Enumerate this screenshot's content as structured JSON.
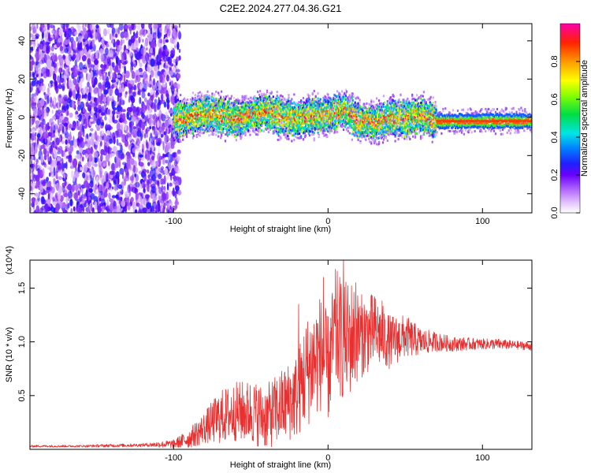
{
  "figure": {
    "title": "C2E2.2024.277.04.36.G21"
  },
  "chart_data": [
    {
      "type": "heatmap",
      "panel": "top",
      "title": "C2E2.2024.277.04.36.G21",
      "xlabel": "Height of straight line (km)",
      "ylabel": "Frequency (Hz)",
      "xlim": [
        -193,
        132
      ],
      "ylim": [
        -50,
        49
      ],
      "x_ticks": [
        -100,
        0,
        100
      ],
      "y_ticks": [
        -40,
        -20,
        0,
        20,
        40
      ],
      "colorbar": {
        "label": "Normalized spectral amplitude",
        "range": [
          0,
          1
        ],
        "ticks": [
          0.0,
          0.2,
          0.4,
          0.6,
          0.8
        ],
        "tick_labels": [
          "0.0",
          "0.2",
          "0.4",
          "0.6",
          "0.8"
        ],
        "colormap": [
          "#ffffff",
          "#e6c8ff",
          "#8a2be2",
          "#3333ff",
          "#00aaff",
          "#00e5e5",
          "#00dd44",
          "#aaff00",
          "#ffff00",
          "#ff9900",
          "#ff0000",
          "#ff00aa"
        ]
      },
      "regions": {
        "noise_x_range": [
          -193,
          -100
        ],
        "signal_center_track": [
          [
            -100,
            -2
          ],
          [
            -90,
            0
          ],
          [
            -80,
            2
          ],
          [
            -70,
            1
          ],
          [
            -60,
            -1
          ],
          [
            -50,
            1
          ],
          [
            -40,
            3
          ],
          [
            -30,
            0
          ],
          [
            -20,
            -1
          ],
          [
            -10,
            1
          ],
          [
            0,
            1
          ],
          [
            10,
            4
          ],
          [
            20,
            -2
          ],
          [
            30,
            -3
          ],
          [
            40,
            0
          ],
          [
            50,
            -1
          ],
          [
            60,
            1
          ],
          [
            70,
            -2
          ],
          [
            80,
            -2
          ],
          [
            90,
            -2
          ],
          [
            100,
            -2
          ],
          [
            110,
            -2
          ],
          [
            120,
            -2
          ],
          [
            132,
            -2
          ]
        ]
      }
    },
    {
      "type": "line",
      "panel": "bottom",
      "xlabel": "Height of straight line (km)",
      "ylabel": "SNR (10 * v/v)",
      "y_multiplier": "(x10^4)",
      "xlim": [
        -193,
        132
      ],
      "ylim": [
        0,
        17600
      ],
      "x_ticks": [
        -100,
        0,
        100
      ],
      "y_ticks": [
        5000,
        10000,
        15000
      ],
      "y_tick_labels": [
        "0.5",
        "1.0",
        "1.5"
      ],
      "color": "#e83030",
      "series": [
        {
          "x": [
            -193,
            -180,
            -160,
            -140,
            -120,
            -100,
            -90,
            -80,
            -70,
            -60,
            -50,
            -40,
            -30,
            -20,
            -15,
            -10,
            -5,
            0,
            5,
            10,
            15,
            20,
            30,
            40,
            50,
            60,
            70,
            80,
            90,
            100,
            110,
            120,
            132
          ],
          "y": [
            300,
            300,
            300,
            350,
            400,
            500,
            1000,
            2000,
            3000,
            3500,
            3500,
            3000,
            4000,
            5000,
            7000,
            8000,
            9000,
            7500,
            11000,
            10000,
            10500,
            10500,
            11000,
            10000,
            10500,
            10000,
            10000,
            9800,
            9800,
            9800,
            9800,
            9700,
            9600
          ],
          "noise_amplitude": [
            100,
            100,
            100,
            150,
            150,
            400,
            900,
            1500,
            2500,
            2800,
            3000,
            3000,
            3500,
            4000,
            5000,
            5500,
            5500,
            5000,
            6000,
            5500,
            5500,
            4000,
            3500,
            2500,
            2000,
            1300,
            900,
            700,
            600,
            500,
            500,
            400,
            400
          ],
          "peaks": [
            [
              -19,
              13500
            ],
            [
              -3,
              16000
            ],
            [
              10,
              17600
            ],
            [
              18,
              15500
            ],
            [
              20,
              13200
            ],
            [
              30,
              14000
            ],
            [
              35,
              13800
            ]
          ]
        }
      ]
    }
  ]
}
